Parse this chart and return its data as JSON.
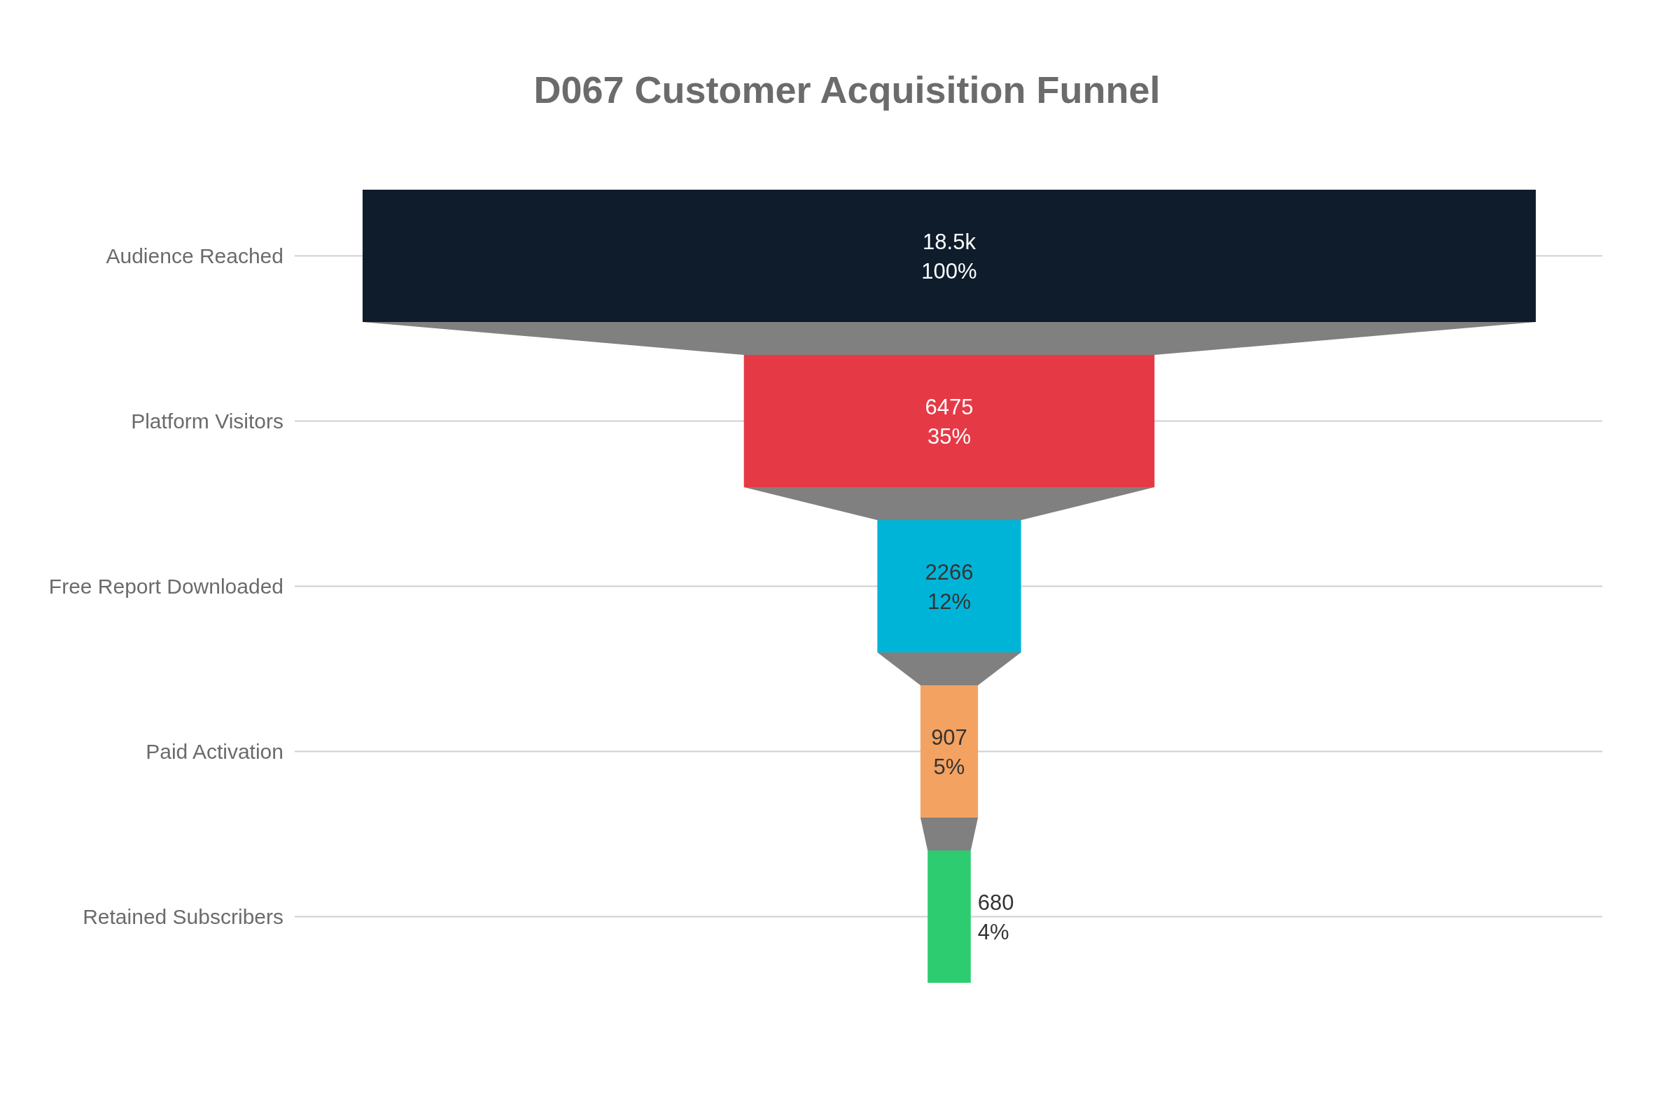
{
  "chart_data": {
    "type": "other",
    "title": "D067 Customer Acquisition Funnel",
    "categories": [
      "Audience Reached",
      "Platform Visitors",
      "Free Report Downloaded",
      "Paid Activation",
      "Retained Subscribers"
    ],
    "values": [
      18500,
      6475,
      2266,
      907,
      680
    ],
    "value_labels": [
      "18.5k\n100%",
      "6475\n35%",
      "2266\n12%",
      "907\n5%",
      "680\n4%"
    ],
    "colors": [
      "#0f1c2c",
      "#e63946",
      "#00b4d8",
      "#f4a261",
      "#2ecc71"
    ]
  }
}
